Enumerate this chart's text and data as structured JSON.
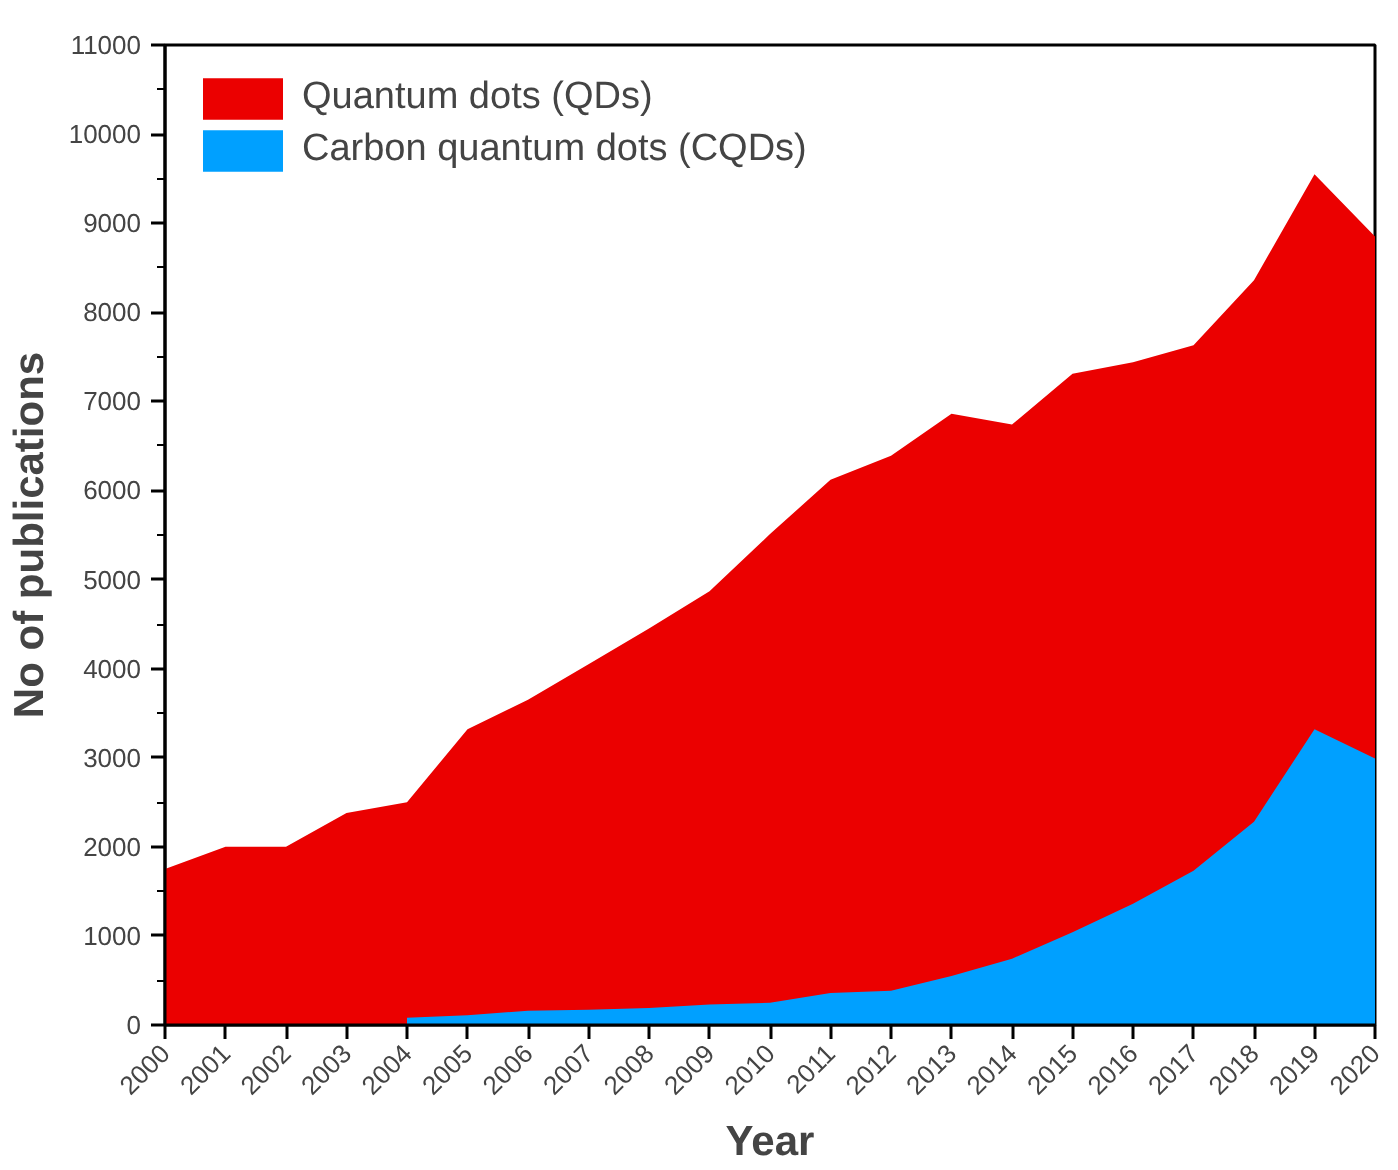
{
  "chart_data": {
    "type": "area",
    "xlabel": "Year",
    "ylabel": "No of publications",
    "x": [
      2000,
      2001,
      2002,
      2003,
      2004,
      2005,
      2006,
      2007,
      2008,
      2009,
      2010,
      2011,
      2012,
      2013,
      2014,
      2015,
      2016,
      2017,
      2018,
      2019,
      2020
    ],
    "series": [
      {
        "name": "Quantum dots (QDs)",
        "color": "#eb0000",
        "values": [
          1750,
          2000,
          2000,
          2380,
          2500,
          3320,
          3650,
          4050,
          4450,
          4870,
          5510,
          6120,
          6390,
          6860,
          6740,
          7310,
          7440,
          7630,
          8360,
          9550,
          8850
        ]
      },
      {
        "name": "Carbon quantum dots (CQDs)",
        "color": "#00a0ff",
        "values": [
          null,
          null,
          null,
          null,
          80,
          110,
          160,
          170,
          190,
          230,
          250,
          360,
          385,
          550,
          745,
          1040,
          1360,
          1730,
          2280,
          3320,
          2990
        ]
      }
    ],
    "xlim": [
      2000,
      2020
    ],
    "xticks": [
      2000,
      2001,
      2002,
      2003,
      2004,
      2005,
      2006,
      2007,
      2008,
      2009,
      2010,
      2011,
      2012,
      2013,
      2014,
      2015,
      2016,
      2017,
      2018,
      2019,
      2020
    ],
    "ylim": [
      0,
      11000
    ],
    "yticks": [
      0,
      1000,
      2000,
      3000,
      4000,
      5000,
      6000,
      7000,
      8000,
      9000,
      10000,
      11000
    ],
    "legend": "top left",
    "grid": false
  }
}
